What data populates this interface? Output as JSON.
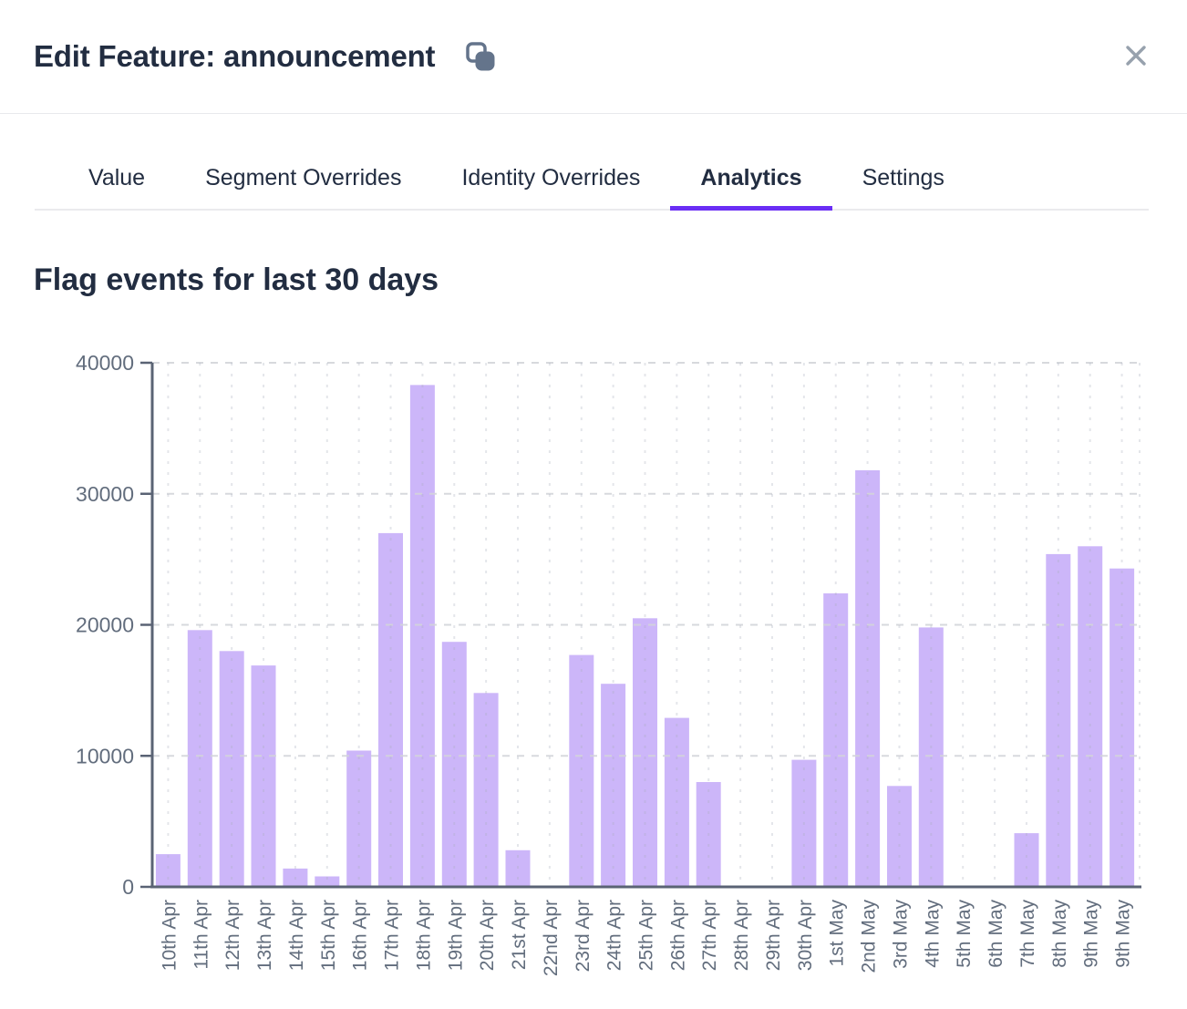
{
  "header": {
    "title": "Edit Feature: announcement",
    "copy_icon": "copy-icon",
    "close_icon": "close-icon"
  },
  "tabs": [
    {
      "label": "Value",
      "active": false
    },
    {
      "label": "Segment Overrides",
      "active": false
    },
    {
      "label": "Identity Overrides",
      "active": false
    },
    {
      "label": "Analytics",
      "active": true
    },
    {
      "label": "Settings",
      "active": false
    }
  ],
  "chart": {
    "heading": "Flag events for last 30 days"
  },
  "chart_data": {
    "type": "bar",
    "title": "Flag events for last 30 days",
    "categories": [
      "10th Apr",
      "11th Apr",
      "12th Apr",
      "13th Apr",
      "14th Apr",
      "15th Apr",
      "16th Apr",
      "17th Apr",
      "18th Apr",
      "19th Apr",
      "20th Apr",
      "21st Apr",
      "22nd Apr",
      "23rd Apr",
      "24th Apr",
      "25th Apr",
      "26th Apr",
      "27th Apr",
      "28th Apr",
      "29th Apr",
      "30th Apr",
      "1st May",
      "2nd May",
      "3rd May",
      "4th May",
      "5th May",
      "6th May",
      "7th May",
      "8th May",
      "9th May",
      "9th May"
    ],
    "values": [
      2500,
      19600,
      18000,
      16900,
      1400,
      800,
      10400,
      27000,
      38300,
      18700,
      14800,
      2800,
      0,
      17700,
      15500,
      20500,
      12900,
      8000,
      0,
      0,
      9700,
      22400,
      31800,
      7700,
      19800,
      0,
      0,
      4100,
      25400,
      26000,
      24300
    ],
    "xlabel": "",
    "ylabel": "",
    "ylim": [
      0,
      40000
    ],
    "yticks": [
      0,
      10000,
      20000,
      30000,
      40000
    ],
    "grid": true,
    "legend": "none",
    "colors": {
      "bar": "#ccb6f9",
      "axis": "#5a6374",
      "tick_label": "#626d7d",
      "grid_h": "#d3d5da",
      "grid_v": "#a8adbd",
      "accent": "#6a2ef5"
    }
  }
}
